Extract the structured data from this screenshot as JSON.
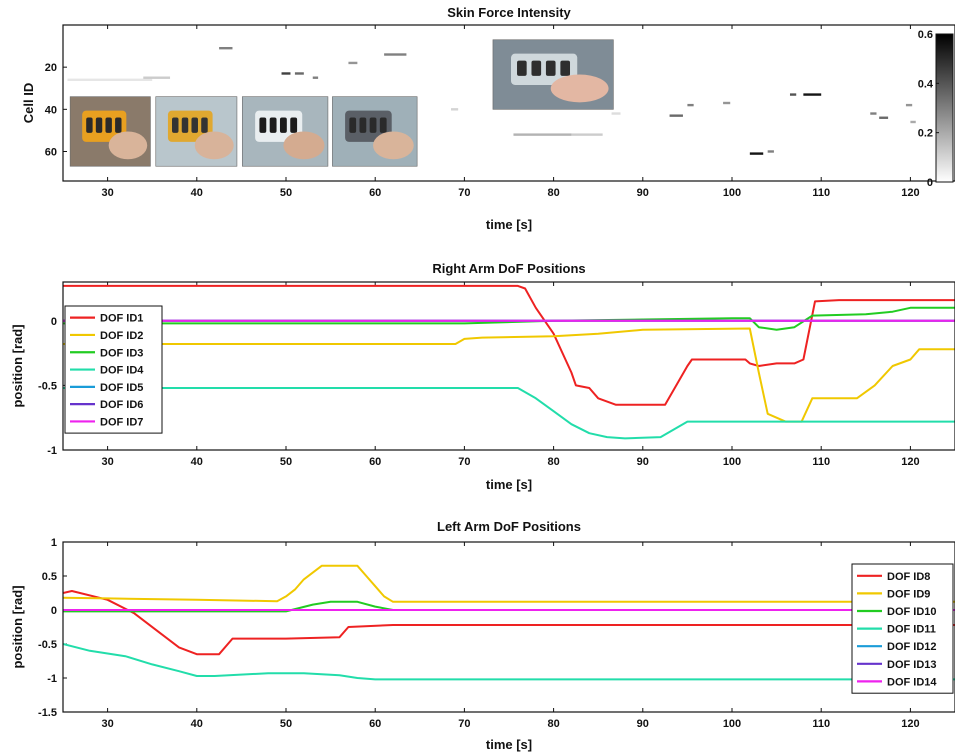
{
  "chart_data": [
    {
      "type": "heatmap",
      "title": "Skin Force Intensity",
      "xlabel": "time [s]",
      "ylabel": "Cell ID",
      "xlim": [
        25,
        125
      ],
      "ylim": [
        0,
        74
      ],
      "y_reversed": true,
      "xticks": [
        30,
        40,
        50,
        60,
        70,
        80,
        90,
        100,
        110,
        120
      ],
      "yticks": [
        20,
        40,
        60
      ],
      "colorbar": {
        "range": [
          0,
          0.6
        ],
        "ticks": [
          0,
          0.2,
          0.4,
          0.6
        ],
        "colormap": "white-to-black"
      },
      "cells": [
        {
          "t0": 25.5,
          "t1": 35.0,
          "cell": 26,
          "value": 0.06
        },
        {
          "t0": 34.0,
          "t1": 37.0,
          "cell": 25,
          "value": 0.12
        },
        {
          "t0": 42.5,
          "t1": 44.0,
          "cell": 11,
          "value": 0.3
        },
        {
          "t0": 49.5,
          "t1": 50.5,
          "cell": 23,
          "value": 0.45
        },
        {
          "t0": 51.0,
          "t1": 52.0,
          "cell": 23,
          "value": 0.35
        },
        {
          "t0": 53.0,
          "t1": 53.6,
          "cell": 25,
          "value": 0.3
        },
        {
          "t0": 57.0,
          "t1": 58.0,
          "cell": 18,
          "value": 0.25
        },
        {
          "t0": 61.0,
          "t1": 63.5,
          "cell": 14,
          "value": 0.3
        },
        {
          "t0": 68.5,
          "t1": 69.3,
          "cell": 40,
          "value": 0.1
        },
        {
          "t0": 75.5,
          "t1": 82.0,
          "cell": 52,
          "value": 0.18
        },
        {
          "t0": 82.0,
          "t1": 85.5,
          "cell": 52,
          "value": 0.12
        },
        {
          "t0": 86.5,
          "t1": 87.5,
          "cell": 42,
          "value": 0.08
        },
        {
          "t0": 93.0,
          "t1": 94.5,
          "cell": 43,
          "value": 0.35
        },
        {
          "t0": 95.0,
          "t1": 95.7,
          "cell": 38,
          "value": 0.3
        },
        {
          "t0": 99.0,
          "t1": 99.8,
          "cell": 37,
          "value": 0.25
        },
        {
          "t0": 102.0,
          "t1": 103.5,
          "cell": 61,
          "value": 0.55
        },
        {
          "t0": 104.0,
          "t1": 104.7,
          "cell": 60,
          "value": 0.3
        },
        {
          "t0": 106.5,
          "t1": 107.2,
          "cell": 33,
          "value": 0.4
        },
        {
          "t0": 108.0,
          "t1": 110.0,
          "cell": 33,
          "value": 0.55
        },
        {
          "t0": 115.5,
          "t1": 116.2,
          "cell": 42,
          "value": 0.3
        },
        {
          "t0": 116.5,
          "t1": 117.5,
          "cell": 44,
          "value": 0.35
        },
        {
          "t0": 119.5,
          "t1": 120.2,
          "cell": 38,
          "value": 0.25
        },
        {
          "t0": 120.0,
          "t1": 120.6,
          "cell": 46,
          "value": 0.2
        }
      ],
      "photo_insets": [
        {
          "x0": 25.8,
          "x1": 34.8,
          "y0": 34,
          "y1": 67,
          "subject": "hand-on-orange-skin-patch"
        },
        {
          "x0": 35.4,
          "x1": 44.5,
          "y0": 34,
          "y1": 67,
          "subject": "hand-on-robot-skin"
        },
        {
          "x0": 45.1,
          "x1": 54.7,
          "y0": 34,
          "y1": 67,
          "subject": "hand-gripping-robot-arm"
        },
        {
          "x0": 55.2,
          "x1": 64.7,
          "y0": 34,
          "y1": 67,
          "subject": "hand-touching-robot-skin"
        },
        {
          "x0": 73.2,
          "x1": 86.7,
          "y0": 7,
          "y1": 40,
          "subject": "hand-holding-robot-gripper"
        }
      ]
    },
    {
      "type": "line",
      "title": "Right Arm DoF Positions",
      "xlabel": "time [s]",
      "ylabel": "position [rad]",
      "xlim": [
        25,
        125
      ],
      "ylim": [
        -1,
        0.3
      ],
      "xticks": [
        30,
        40,
        50,
        60,
        70,
        80,
        90,
        100,
        110,
        120
      ],
      "yticks": [
        -1,
        -0.5,
        0
      ],
      "legend": "top-left",
      "series": [
        {
          "name": "DOF ID1",
          "color": "#ee2222",
          "x": [
            25,
            76,
            76.8,
            78,
            80,
            82,
            82.5,
            84,
            85,
            87,
            92.5,
            95,
            95.5,
            99,
            101.5,
            102,
            103,
            105,
            107,
            108,
            109.3,
            112,
            125
          ],
          "y": [
            0.27,
            0.27,
            0.25,
            0.1,
            -0.1,
            -0.4,
            -0.5,
            -0.52,
            -0.6,
            -0.65,
            -0.65,
            -0.35,
            -0.3,
            -0.3,
            -0.3,
            -0.33,
            -0.35,
            -0.33,
            -0.33,
            -0.3,
            0.15,
            0.16,
            0.16
          ]
        },
        {
          "name": "DOF ID2",
          "color": "#f0c800",
          "x": [
            25,
            69,
            70,
            72,
            80,
            85,
            90,
            102,
            103,
            104,
            106,
            107.8,
            109,
            114,
            116,
            118,
            120,
            121,
            125
          ],
          "y": [
            -0.18,
            -0.18,
            -0.14,
            -0.13,
            -0.12,
            -0.1,
            -0.07,
            -0.06,
            -0.4,
            -0.72,
            -0.78,
            -0.78,
            -0.6,
            -0.6,
            -0.5,
            -0.35,
            -0.3,
            -0.22,
            -0.22
          ]
        },
        {
          "name": "DOF ID3",
          "color": "#22cc22",
          "x": [
            25,
            70,
            80,
            90,
            100,
            102,
            103,
            105,
            107,
            109,
            115,
            118,
            120,
            125
          ],
          "y": [
            -0.02,
            -0.02,
            0.0,
            0.01,
            0.02,
            0.02,
            -0.05,
            -0.07,
            -0.05,
            0.04,
            0.05,
            0.07,
            0.1,
            0.1
          ]
        },
        {
          "name": "DOF ID4",
          "color": "#22ddaa",
          "x": [
            25,
            76,
            78,
            80,
            82,
            84,
            86,
            88,
            92,
            95,
            100,
            105,
            110,
            115,
            120,
            125
          ],
          "y": [
            -0.52,
            -0.52,
            -0.6,
            -0.7,
            -0.8,
            -0.87,
            -0.9,
            -0.91,
            -0.9,
            -0.78,
            -0.78,
            -0.78,
            -0.78,
            -0.78,
            -0.78,
            -0.78
          ]
        },
        {
          "name": "DOF ID5",
          "color": "#1a9cd8",
          "x": [
            25,
            125
          ],
          "y": [
            0.0,
            0.0
          ]
        },
        {
          "name": "DOF ID6",
          "color": "#6633cc",
          "x": [
            25,
            125
          ],
          "y": [
            0.0,
            0.0
          ]
        },
        {
          "name": "DOF ID7",
          "color": "#ee22ee",
          "x": [
            25,
            125
          ],
          "y": [
            0.0,
            0.0
          ]
        }
      ]
    },
    {
      "type": "line",
      "title": "Left Arm DoF Positions",
      "xlabel": "time [s]",
      "ylabel": "position [rad]",
      "xlim": [
        25,
        125
      ],
      "ylim": [
        -1.5,
        1
      ],
      "xticks": [
        30,
        40,
        50,
        60,
        70,
        80,
        90,
        100,
        110,
        120
      ],
      "yticks": [
        -1.5,
        -1,
        -0.5,
        0,
        0.5,
        1
      ],
      "legend": "right",
      "series": [
        {
          "name": "DOF ID8",
          "color": "#ee2222",
          "x": [
            25,
            26,
            30,
            33,
            36,
            38,
            40,
            42.5,
            44,
            50,
            56,
            57,
            62,
            70,
            125
          ],
          "y": [
            0.25,
            0.28,
            0.15,
            -0.05,
            -0.35,
            -0.55,
            -0.65,
            -0.65,
            -0.42,
            -0.42,
            -0.4,
            -0.25,
            -0.22,
            -0.22,
            -0.22
          ]
        },
        {
          "name": "DOF ID9",
          "color": "#f0c800",
          "x": [
            25,
            30,
            40,
            49,
            50,
            51,
            52,
            53,
            54,
            58,
            59,
            60,
            61,
            62,
            70,
            125
          ],
          "y": [
            0.18,
            0.17,
            0.15,
            0.13,
            0.2,
            0.3,
            0.45,
            0.55,
            0.65,
            0.65,
            0.5,
            0.35,
            0.2,
            0.12,
            0.12,
            0.12
          ]
        },
        {
          "name": "DOF ID10",
          "color": "#22cc22",
          "x": [
            25,
            40,
            50,
            53,
            55,
            58,
            60,
            62,
            125
          ],
          "y": [
            -0.02,
            -0.02,
            -0.02,
            0.08,
            0.12,
            0.12,
            0.05,
            0.0,
            0.0
          ]
        },
        {
          "name": "DOF ID11",
          "color": "#22ddaa",
          "x": [
            25,
            28,
            32,
            35,
            38,
            40,
            42,
            48,
            52,
            56,
            58,
            60,
            70,
            125
          ],
          "y": [
            -0.5,
            -0.6,
            -0.68,
            -0.8,
            -0.9,
            -0.97,
            -0.97,
            -0.93,
            -0.93,
            -0.96,
            -1.0,
            -1.02,
            -1.02,
            -1.02
          ]
        },
        {
          "name": "DOF ID12",
          "color": "#1a9cd8",
          "x": [
            25,
            125
          ],
          "y": [
            0.0,
            0.0
          ]
        },
        {
          "name": "DOF ID13",
          "color": "#6633cc",
          "x": [
            25,
            125
          ],
          "y": [
            0.0,
            0.0
          ]
        },
        {
          "name": "DOF ID14",
          "color": "#ee22ee",
          "x": [
            25,
            125
          ],
          "y": [
            0.0,
            0.0
          ]
        }
      ]
    }
  ]
}
